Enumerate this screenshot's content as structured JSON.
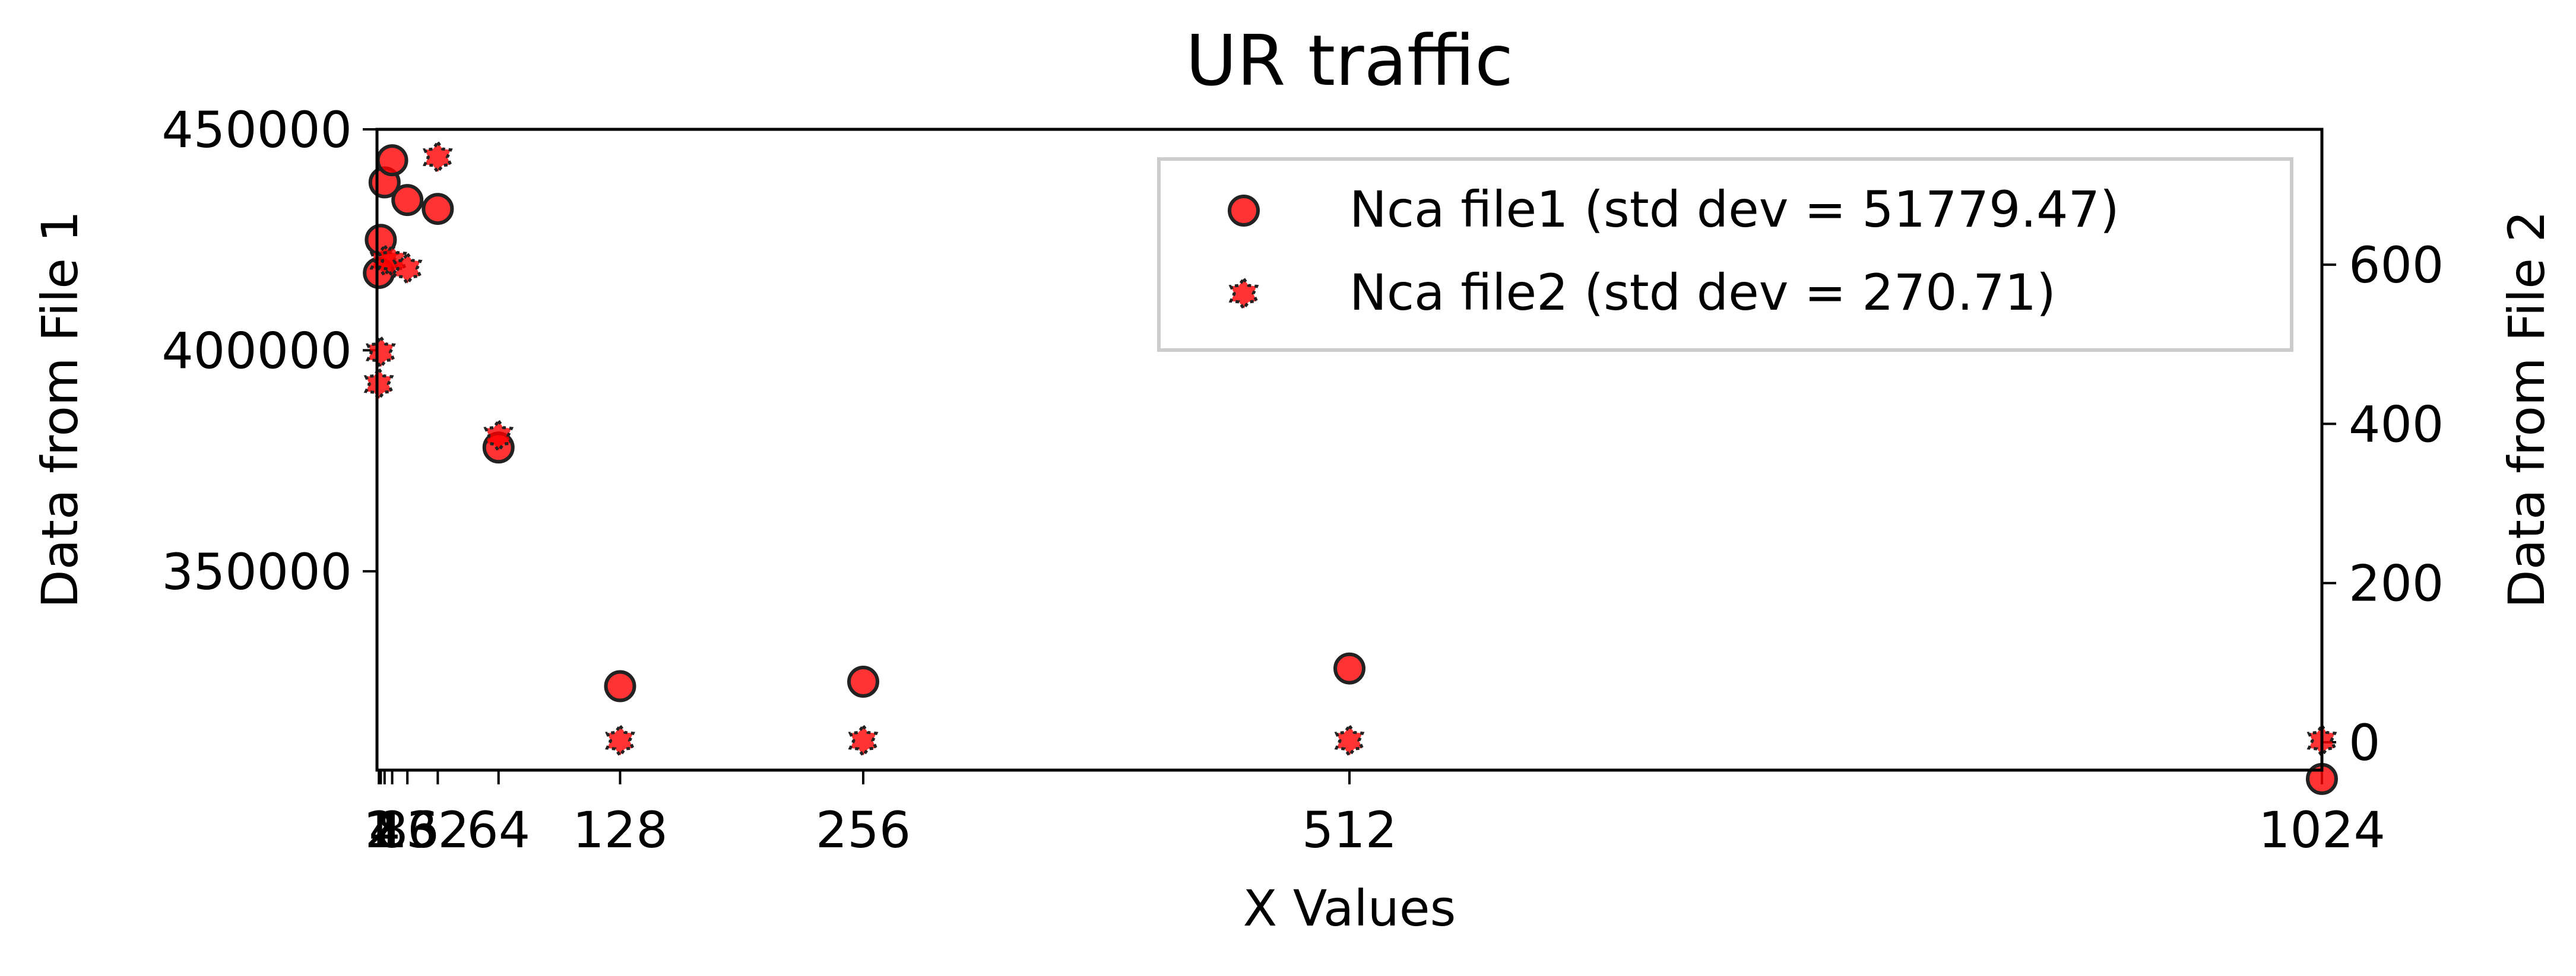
{
  "chart_data": {
    "type": "scatter",
    "title": "UR traffic",
    "xlabel": "X Values",
    "ylabel_left": "Data from File 1",
    "ylabel_right": "Data from File 2",
    "xlim": [
      0,
      1024
    ],
    "ylim_left": [
      305000,
      450000
    ],
    "ylim_right": [
      -35,
      770
    ],
    "x_ticks": [
      1,
      2,
      4,
      8,
      16,
      32,
      64,
      128,
      256,
      512,
      1024
    ],
    "x_tick_labels": [
      "1",
      "2",
      "4",
      "8",
      "16",
      "32",
      "64",
      "128",
      "256",
      "512",
      "1024"
    ],
    "y_left_ticks": [
      350000,
      400000,
      450000
    ],
    "y_left_tick_labels": [
      "350000",
      "400000",
      "450000"
    ],
    "y_right_ticks": [
      0,
      200,
      400,
      600
    ],
    "y_right_tick_labels": [
      "0",
      "200",
      "400",
      "600"
    ],
    "grid": false,
    "legend_position": "top-right",
    "series": [
      {
        "name": "Nca file1 (std dev = 51779.47)",
        "axis": "left",
        "marker": "circle",
        "color": "#ff0000",
        "edge_color": "#222222",
        "x": [
          1,
          2,
          4,
          8,
          16,
          32,
          64,
          128,
          256,
          512,
          1024
        ],
        "y": [
          417500,
          425000,
          438000,
          443000,
          434000,
          432000,
          378000,
          324000,
          325000,
          328000,
          303000
        ]
      },
      {
        "name": "Nca file2 (std dev = 270.71)",
        "axis": "right",
        "marker": "star",
        "color": "#ff0000",
        "edge_color": "#222222",
        "x": [
          1,
          2,
          4,
          8,
          16,
          32,
          64,
          128,
          256,
          512,
          1024
        ],
        "y": [
          450,
          490,
          605,
          605,
          595,
          735,
          385,
          2,
          2,
          2,
          2
        ]
      }
    ]
  }
}
